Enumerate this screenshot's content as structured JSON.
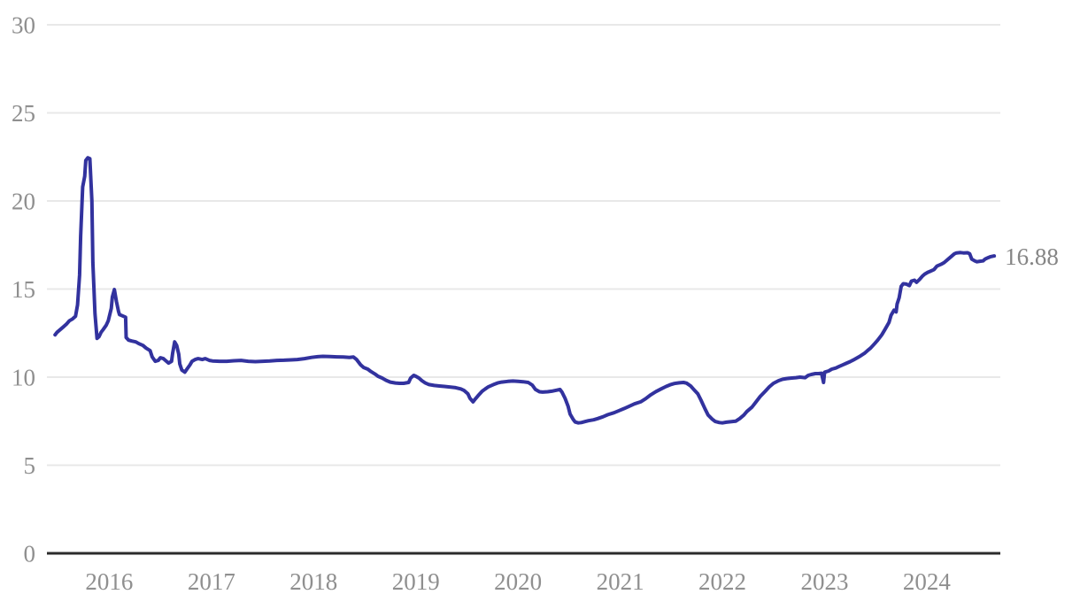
{
  "chart_data": {
    "type": "line",
    "title": "",
    "xlabel": "",
    "ylabel": "",
    "grid": "horizontal",
    "legend_position": "none",
    "xlim": [
      2015.39,
      2024.72
    ],
    "ylim": [
      0,
      30
    ],
    "y_ticks": [
      0,
      5,
      10,
      15,
      20,
      25,
      30
    ],
    "x_ticks": [
      2016,
      2017,
      2018,
      2019,
      2020,
      2021,
      2022,
      2023,
      2024
    ],
    "line_color": "#32329e",
    "axis_color": "#2b2b2b",
    "grid_color": "#e8e8e8",
    "tick_label_color": "#8f8f8f",
    "end_label_color": "#858585",
    "last_value_label": "16.88",
    "series": [
      {
        "name": "series-1",
        "points": [
          [
            2015.47,
            12.4
          ],
          [
            2015.49,
            12.55
          ],
          [
            2015.52,
            12.7
          ],
          [
            2015.55,
            12.85
          ],
          [
            2015.58,
            13.0
          ],
          [
            2015.61,
            13.2
          ],
          [
            2015.64,
            13.3
          ],
          [
            2015.67,
            13.45
          ],
          [
            2015.69,
            14.1
          ],
          [
            2015.71,
            15.8
          ],
          [
            2015.72,
            18.0
          ],
          [
            2015.74,
            20.8
          ],
          [
            2015.76,
            21.4
          ],
          [
            2015.77,
            22.3
          ],
          [
            2015.79,
            22.45
          ],
          [
            2015.81,
            22.4
          ],
          [
            2015.83,
            20.0
          ],
          [
            2015.84,
            16.5
          ],
          [
            2015.86,
            13.6
          ],
          [
            2015.88,
            12.2
          ],
          [
            2015.9,
            12.3
          ],
          [
            2015.92,
            12.55
          ],
          [
            2015.94,
            12.7
          ],
          [
            2015.97,
            12.95
          ],
          [
            2015.99,
            13.2
          ],
          [
            2016.02,
            13.9
          ],
          [
            2016.03,
            14.55
          ],
          [
            2016.05,
            14.97
          ],
          [
            2016.07,
            14.3
          ],
          [
            2016.09,
            13.75
          ],
          [
            2016.1,
            13.55
          ],
          [
            2016.12,
            13.5
          ],
          [
            2016.14,
            13.45
          ],
          [
            2016.16,
            13.4
          ],
          [
            2016.165,
            12.25
          ],
          [
            2016.19,
            12.1
          ],
          [
            2016.22,
            12.05
          ],
          [
            2016.26,
            12.0
          ],
          [
            2016.29,
            11.9
          ],
          [
            2016.33,
            11.8
          ],
          [
            2016.36,
            11.65
          ],
          [
            2016.4,
            11.5
          ],
          [
            2016.42,
            11.15
          ],
          [
            2016.45,
            10.9
          ],
          [
            2016.48,
            10.95
          ],
          [
            2016.5,
            11.1
          ],
          [
            2016.53,
            11.05
          ],
          [
            2016.55,
            10.95
          ],
          [
            2016.58,
            10.8
          ],
          [
            2016.61,
            10.9
          ],
          [
            2016.62,
            11.35
          ],
          [
            2016.64,
            12.0
          ],
          [
            2016.66,
            11.8
          ],
          [
            2016.68,
            11.3
          ],
          [
            2016.69,
            10.75
          ],
          [
            2016.71,
            10.4
          ],
          [
            2016.74,
            10.28
          ],
          [
            2016.76,
            10.45
          ],
          [
            2016.79,
            10.7
          ],
          [
            2016.81,
            10.9
          ],
          [
            2016.84,
            11.0
          ],
          [
            2016.87,
            11.05
          ],
          [
            2016.91,
            11.0
          ],
          [
            2016.94,
            11.05
          ],
          [
            2016.98,
            10.95
          ],
          [
            2017.01,
            10.92
          ],
          [
            2017.08,
            10.9
          ],
          [
            2017.15,
            10.9
          ],
          [
            2017.22,
            10.93
          ],
          [
            2017.29,
            10.95
          ],
          [
            2017.36,
            10.9
          ],
          [
            2017.43,
            10.88
          ],
          [
            2017.5,
            10.9
          ],
          [
            2017.57,
            10.92
          ],
          [
            2017.64,
            10.95
          ],
          [
            2017.71,
            10.96
          ],
          [
            2017.78,
            10.98
          ],
          [
            2017.84,
            11.0
          ],
          [
            2017.91,
            11.05
          ],
          [
            2017.98,
            11.12
          ],
          [
            2018.04,
            11.16
          ],
          [
            2018.09,
            11.18
          ],
          [
            2018.16,
            11.17
          ],
          [
            2018.23,
            11.15
          ],
          [
            2018.29,
            11.14
          ],
          [
            2018.35,
            11.12
          ],
          [
            2018.39,
            11.14
          ],
          [
            2018.42,
            11.0
          ],
          [
            2018.46,
            10.7
          ],
          [
            2018.49,
            10.55
          ],
          [
            2018.53,
            10.45
          ],
          [
            2018.56,
            10.32
          ],
          [
            2018.6,
            10.18
          ],
          [
            2018.63,
            10.05
          ],
          [
            2018.67,
            9.95
          ],
          [
            2018.71,
            9.82
          ],
          [
            2018.75,
            9.72
          ],
          [
            2018.8,
            9.67
          ],
          [
            2018.84,
            9.65
          ],
          [
            2018.88,
            9.65
          ],
          [
            2018.93,
            9.7
          ],
          [
            2018.95,
            9.95
          ],
          [
            2018.98,
            10.1
          ],
          [
            2019.0,
            10.05
          ],
          [
            2019.03,
            9.95
          ],
          [
            2019.06,
            9.8
          ],
          [
            2019.09,
            9.68
          ],
          [
            2019.13,
            9.58
          ],
          [
            2019.18,
            9.53
          ],
          [
            2019.23,
            9.5
          ],
          [
            2019.28,
            9.47
          ],
          [
            2019.33,
            9.44
          ],
          [
            2019.39,
            9.4
          ],
          [
            2019.44,
            9.33
          ],
          [
            2019.47,
            9.25
          ],
          [
            2019.51,
            9.05
          ],
          [
            2019.53,
            8.8
          ],
          [
            2019.56,
            8.6
          ],
          [
            2019.58,
            8.75
          ],
          [
            2019.61,
            8.95
          ],
          [
            2019.65,
            9.2
          ],
          [
            2019.68,
            9.33
          ],
          [
            2019.71,
            9.45
          ],
          [
            2019.76,
            9.58
          ],
          [
            2019.8,
            9.67
          ],
          [
            2019.84,
            9.72
          ],
          [
            2019.9,
            9.76
          ],
          [
            2019.95,
            9.78
          ],
          [
            2020.0,
            9.76
          ],
          [
            2020.05,
            9.74
          ],
          [
            2020.1,
            9.7
          ],
          [
            2020.14,
            9.55
          ],
          [
            2020.17,
            9.3
          ],
          [
            2020.21,
            9.17
          ],
          [
            2020.24,
            9.15
          ],
          [
            2020.29,
            9.17
          ],
          [
            2020.33,
            9.2
          ],
          [
            2020.37,
            9.25
          ],
          [
            2020.41,
            9.3
          ],
          [
            2020.43,
            9.15
          ],
          [
            2020.46,
            8.8
          ],
          [
            2020.49,
            8.35
          ],
          [
            2020.51,
            7.9
          ],
          [
            2020.54,
            7.6
          ],
          [
            2020.56,
            7.45
          ],
          [
            2020.59,
            7.4
          ],
          [
            2020.62,
            7.42
          ],
          [
            2020.66,
            7.48
          ],
          [
            2020.69,
            7.53
          ],
          [
            2020.74,
            7.58
          ],
          [
            2020.78,
            7.65
          ],
          [
            2020.83,
            7.75
          ],
          [
            2020.88,
            7.87
          ],
          [
            2020.94,
            7.98
          ],
          [
            2020.99,
            8.1
          ],
          [
            2021.04,
            8.22
          ],
          [
            2021.09,
            8.35
          ],
          [
            2021.14,
            8.48
          ],
          [
            2021.2,
            8.6
          ],
          [
            2021.25,
            8.78
          ],
          [
            2021.3,
            9.0
          ],
          [
            2021.35,
            9.18
          ],
          [
            2021.4,
            9.33
          ],
          [
            2021.45,
            9.47
          ],
          [
            2021.49,
            9.57
          ],
          [
            2021.53,
            9.64
          ],
          [
            2021.58,
            9.68
          ],
          [
            2021.62,
            9.7
          ],
          [
            2021.65,
            9.66
          ],
          [
            2021.69,
            9.5
          ],
          [
            2021.72,
            9.3
          ],
          [
            2021.76,
            9.05
          ],
          [
            2021.79,
            8.7
          ],
          [
            2021.83,
            8.2
          ],
          [
            2021.86,
            7.85
          ],
          [
            2021.9,
            7.62
          ],
          [
            2021.93,
            7.48
          ],
          [
            2021.97,
            7.42
          ],
          [
            2022.0,
            7.4
          ],
          [
            2022.04,
            7.44
          ],
          [
            2022.09,
            7.47
          ],
          [
            2022.13,
            7.5
          ],
          [
            2022.17,
            7.65
          ],
          [
            2022.21,
            7.85
          ],
          [
            2022.24,
            8.05
          ],
          [
            2022.29,
            8.3
          ],
          [
            2022.33,
            8.6
          ],
          [
            2022.37,
            8.9
          ],
          [
            2022.42,
            9.2
          ],
          [
            2022.46,
            9.45
          ],
          [
            2022.5,
            9.65
          ],
          [
            2022.55,
            9.8
          ],
          [
            2022.59,
            9.88
          ],
          [
            2022.63,
            9.92
          ],
          [
            2022.68,
            9.95
          ],
          [
            2022.72,
            9.97
          ],
          [
            2022.76,
            10.0
          ],
          [
            2022.81,
            9.97
          ],
          [
            2022.84,
            10.1
          ],
          [
            2022.87,
            10.15
          ],
          [
            2022.91,
            10.2
          ],
          [
            2022.94,
            10.2
          ],
          [
            2022.97,
            10.22
          ],
          [
            2022.99,
            9.7
          ],
          [
            2023.0,
            10.28
          ],
          [
            2023.04,
            10.35
          ],
          [
            2023.07,
            10.45
          ],
          [
            2023.11,
            10.52
          ],
          [
            2023.14,
            10.6
          ],
          [
            2023.18,
            10.7
          ],
          [
            2023.21,
            10.78
          ],
          [
            2023.25,
            10.88
          ],
          [
            2023.28,
            10.97
          ],
          [
            2023.32,
            11.1
          ],
          [
            2023.35,
            11.2
          ],
          [
            2023.39,
            11.35
          ],
          [
            2023.42,
            11.5
          ],
          [
            2023.45,
            11.65
          ],
          [
            2023.49,
            11.9
          ],
          [
            2023.52,
            12.1
          ],
          [
            2023.56,
            12.4
          ],
          [
            2023.59,
            12.7
          ],
          [
            2023.63,
            13.1
          ],
          [
            2023.65,
            13.5
          ],
          [
            2023.68,
            13.8
          ],
          [
            2023.7,
            13.7
          ],
          [
            2023.71,
            14.15
          ],
          [
            2023.73,
            14.5
          ],
          [
            2023.75,
            15.15
          ],
          [
            2023.77,
            15.3
          ],
          [
            2023.8,
            15.28
          ],
          [
            2023.83,
            15.2
          ],
          [
            2023.85,
            15.45
          ],
          [
            2023.88,
            15.5
          ],
          [
            2023.9,
            15.38
          ],
          [
            2023.93,
            15.55
          ],
          [
            2023.96,
            15.75
          ],
          [
            2023.98,
            15.85
          ],
          [
            2024.01,
            15.95
          ],
          [
            2024.03,
            16.0
          ],
          [
            2024.07,
            16.1
          ],
          [
            2024.1,
            16.3
          ],
          [
            2024.14,
            16.4
          ],
          [
            2024.17,
            16.5
          ],
          [
            2024.21,
            16.7
          ],
          [
            2024.24,
            16.85
          ],
          [
            2024.27,
            17.0
          ],
          [
            2024.29,
            17.05
          ],
          [
            2024.33,
            17.07
          ],
          [
            2024.36,
            17.05
          ],
          [
            2024.4,
            17.06
          ],
          [
            2024.42,
            17.0
          ],
          [
            2024.44,
            16.7
          ],
          [
            2024.47,
            16.6
          ],
          [
            2024.49,
            16.55
          ],
          [
            2024.52,
            16.58
          ],
          [
            2024.55,
            16.6
          ],
          [
            2024.57,
            16.7
          ],
          [
            2024.6,
            16.78
          ],
          [
            2024.62,
            16.83
          ],
          [
            2024.66,
            16.88
          ]
        ]
      }
    ]
  }
}
